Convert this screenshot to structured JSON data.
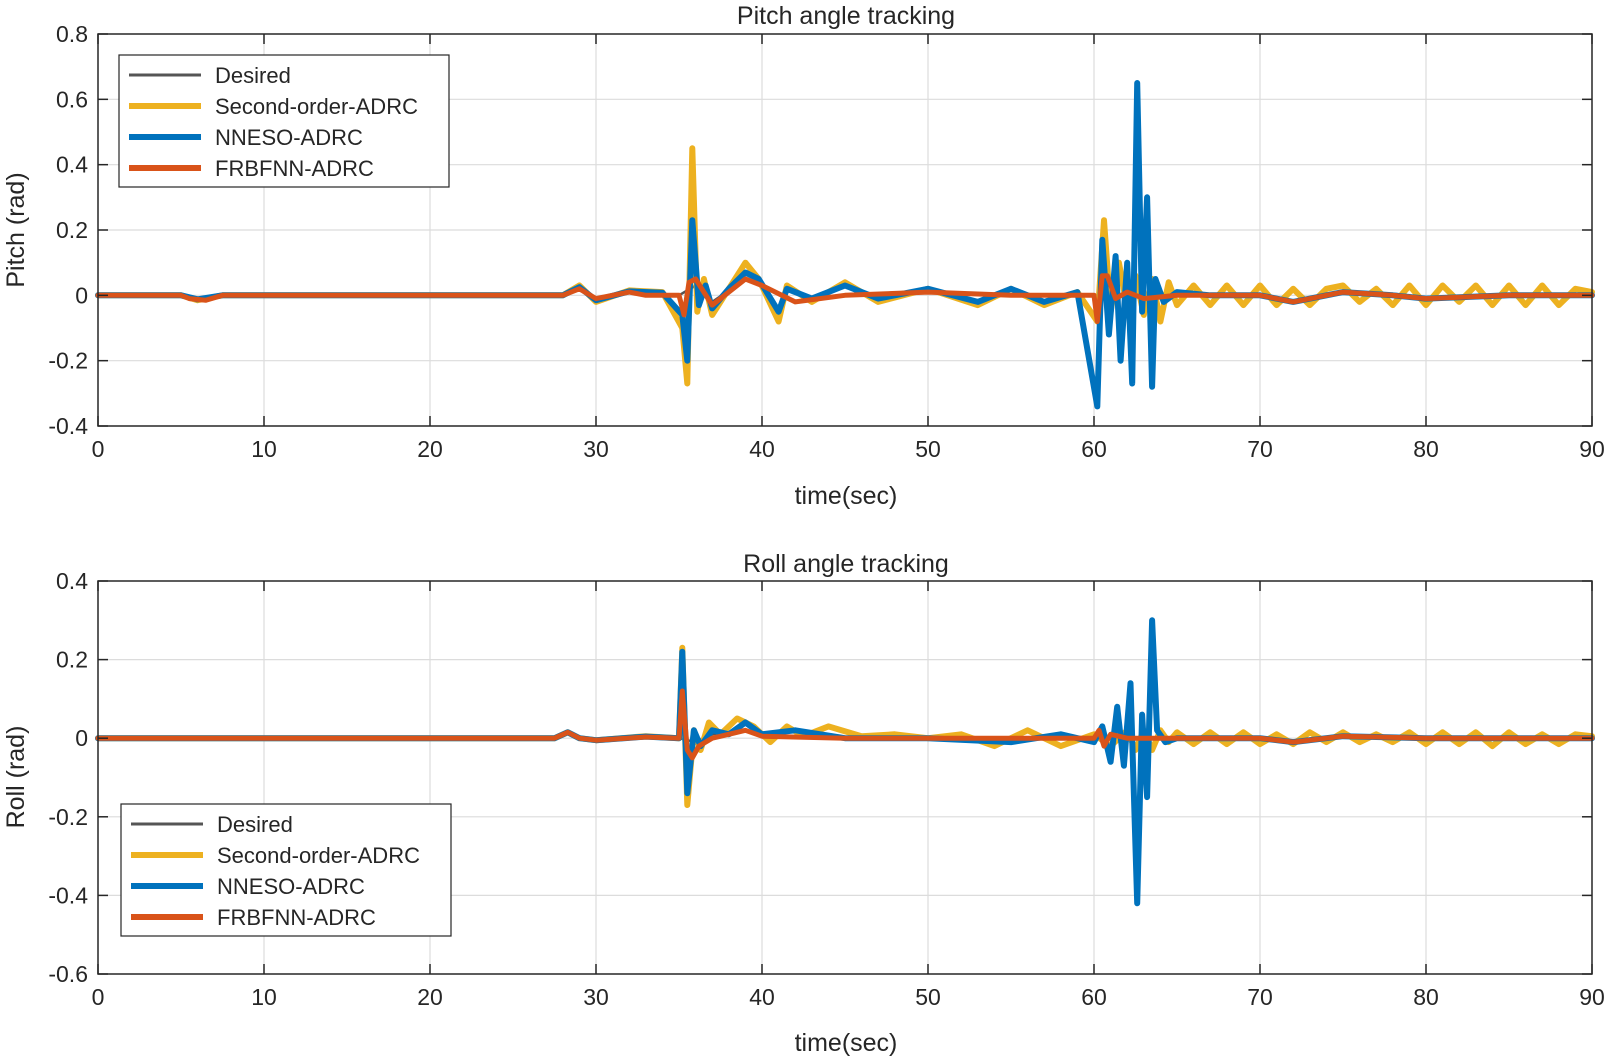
{
  "figure": {
    "background": "#ffffff"
  },
  "colors": {
    "desired": "#555555",
    "second_order": "#EDB120",
    "nneso": "#0072BD",
    "frbfnn": "#D95319",
    "grid": "#dcdcdc",
    "axis": "#262626"
  },
  "chart_data": [
    {
      "type": "line",
      "title": "Pitch angle tracking",
      "xlabel": "time(sec)",
      "ylabel": "Pitch (rad)",
      "xlim": [
        0,
        90
      ],
      "ylim": [
        -0.4,
        0.8
      ],
      "xticks": [
        0,
        10,
        20,
        30,
        40,
        50,
        60,
        70,
        80,
        90
      ],
      "xtick_labels": [
        "0",
        "10",
        "20",
        "30",
        "40",
        "50",
        "60",
        "70",
        "80",
        "90"
      ],
      "yticks": [
        -0.4,
        -0.2,
        0,
        0.2,
        0.4,
        0.6,
        0.8
      ],
      "ytick_labels": [
        "-0.4",
        "-0.2",
        "0",
        "0.2",
        "0.4",
        "0.6",
        "0.8"
      ],
      "grid": true,
      "legend_position": "top-left",
      "series": [
        {
          "name": "Desired",
          "color_key": "desired",
          "x": [
            0,
            5,
            5.5,
            6.5,
            7.5,
            28,
            29,
            30,
            32,
            33,
            35,
            36,
            37,
            39,
            40,
            42,
            45,
            50,
            55,
            58,
            60,
            62,
            65,
            70,
            72,
            75,
            78,
            80,
            85,
            90
          ],
          "y": [
            0,
            0,
            -0.01,
            -0.01,
            0,
            0,
            0.02,
            -0.01,
            0.01,
            0,
            0,
            0.03,
            -0.02,
            0.05,
            0.03,
            -0.02,
            0,
            0.01,
            0,
            0,
            0,
            0,
            0,
            0,
            -0.02,
            0.01,
            0,
            -0.01,
            0,
            0
          ]
        },
        {
          "name": "Second-order-ADRC",
          "color_key": "second_order",
          "x": [
            0,
            5,
            6,
            7.5,
            28,
            29,
            30,
            32,
            34,
            35.2,
            35.5,
            35.8,
            36.1,
            36.5,
            37,
            38,
            39,
            39.8,
            41,
            41.5,
            43,
            45,
            47,
            50,
            53,
            55,
            57,
            59,
            60.2,
            60.6,
            61,
            61.5,
            62,
            62.5,
            63,
            63.5,
            64,
            64.5,
            65,
            66,
            67,
            68,
            69,
            70,
            71,
            72,
            73,
            74,
            75,
            76,
            77,
            78,
            79,
            80,
            81,
            82,
            83,
            84,
            85,
            86,
            87,
            88,
            89,
            90
          ],
          "y": [
            0,
            0,
            -0.015,
            0,
            0,
            0.03,
            -0.02,
            0.015,
            0.01,
            -0.1,
            -0.27,
            0.45,
            -0.05,
            0.05,
            -0.06,
            0.02,
            0.1,
            0.05,
            -0.08,
            0.03,
            -0.02,
            0.04,
            -0.02,
            0.02,
            -0.03,
            0.02,
            -0.03,
            0.01,
            -0.08,
            0.23,
            -0.05,
            0.1,
            -0.04,
            0.06,
            -0.06,
            0.05,
            -0.08,
            0.04,
            -0.03,
            0.03,
            -0.03,
            0.03,
            -0.03,
            0.03,
            -0.03,
            0.02,
            -0.03,
            0.02,
            0.03,
            -0.02,
            0.02,
            -0.03,
            0.03,
            -0.03,
            0.03,
            -0.02,
            0.03,
            -0.03,
            0.03,
            -0.03,
            0.03,
            -0.03,
            0.02,
            0.01
          ]
        },
        {
          "name": "NNESO-ADRC",
          "color_key": "nneso",
          "x": [
            0,
            5,
            6,
            7.5,
            28,
            29,
            30,
            32,
            34,
            35.2,
            35.5,
            35.8,
            36.2,
            36.6,
            37,
            38,
            39,
            39.8,
            41,
            41.5,
            43,
            45,
            47,
            50,
            53,
            55,
            57,
            59,
            60.2,
            60.5,
            60.9,
            61.3,
            61.6,
            62,
            62.3,
            62.6,
            62.9,
            63.2,
            63.5,
            63.7,
            64.2,
            65,
            67,
            70,
            72,
            75,
            78,
            80,
            85,
            90
          ],
          "y": [
            0,
            0,
            -0.012,
            0,
            0,
            0.025,
            -0.015,
            0.012,
            0.008,
            -0.06,
            -0.2,
            0.23,
            -0.03,
            0.03,
            -0.04,
            0.02,
            0.07,
            0.05,
            -0.05,
            0.02,
            -0.01,
            0.03,
            -0.01,
            0.02,
            -0.02,
            0.02,
            -0.02,
            0.01,
            -0.34,
            0.17,
            -0.12,
            0.12,
            -0.2,
            0.1,
            -0.27,
            0.65,
            -0.05,
            0.3,
            -0.28,
            0.05,
            -0.02,
            0.01,
            0,
            0,
            -0.02,
            0.01,
            0,
            -0.01,
            0,
            0
          ]
        },
        {
          "name": "FRBFNN-ADRC",
          "color_key": "frbfnn",
          "x": [
            0,
            5,
            5.5,
            6.5,
            7.5,
            28,
            29,
            30,
            32,
            33,
            35,
            35.3,
            35.6,
            36,
            36.5,
            37,
            39,
            40,
            42,
            45,
            50,
            55,
            58,
            60,
            60.2,
            60.5,
            60.8,
            61.3,
            62,
            63,
            65,
            70,
            72,
            75,
            78,
            80,
            85,
            90
          ],
          "y": [
            0,
            0,
            -0.01,
            -0.015,
            0,
            0,
            0.02,
            -0.01,
            0.01,
            0,
            0,
            -0.06,
            0.04,
            0.05,
            0.01,
            -0.03,
            0.05,
            0.03,
            -0.02,
            0,
            0.01,
            0,
            0,
            0,
            -0.08,
            0.06,
            0.06,
            -0.01,
            0.01,
            -0.01,
            0,
            0,
            -0.02,
            0.01,
            0,
            -0.01,
            0,
            0
          ]
        }
      ]
    },
    {
      "type": "line",
      "title": "Roll angle tracking",
      "xlabel": "time(sec)",
      "ylabel": "Roll (rad)",
      "xlim": [
        0,
        90
      ],
      "ylim": [
        -0.6,
        0.4
      ],
      "xticks": [
        0,
        10,
        20,
        30,
        40,
        50,
        60,
        70,
        80,
        90
      ],
      "xtick_labels": [
        "0",
        "10",
        "20",
        "30",
        "40",
        "50",
        "60",
        "70",
        "80",
        "90"
      ],
      "yticks": [
        -0.6,
        -0.4,
        -0.2,
        0,
        0.2,
        0.4
      ],
      "ytick_labels": [
        "-0.6",
        "-0.4",
        "-0.2",
        "0",
        "0.2",
        "0.4"
      ],
      "grid": true,
      "legend_position": "bottom-left",
      "series": [
        {
          "name": "Desired",
          "color_key": "desired",
          "x": [
            0,
            27.5,
            28.3,
            29,
            30,
            33,
            35,
            36,
            37,
            38,
            39,
            40,
            45,
            50,
            55,
            60,
            65,
            70,
            72,
            75,
            80,
            85,
            90
          ],
          "y": [
            0,
            0,
            0.015,
            0,
            -0.005,
            0.002,
            0,
            -0.01,
            0.01,
            0.015,
            0.02,
            0.005,
            0,
            0,
            0,
            0,
            0,
            0,
            -0.01,
            0.005,
            0,
            0,
            0
          ]
        },
        {
          "name": "Second-order-ADRC",
          "color_key": "second_order",
          "x": [
            0,
            27.5,
            28.3,
            29,
            30,
            33,
            35,
            35.2,
            35.5,
            35.9,
            36.3,
            36.8,
            37.5,
            38.5,
            39.5,
            40.5,
            41.5,
            42.5,
            44,
            46,
            48,
            50,
            52,
            54,
            56,
            58,
            60,
            61,
            62,
            62.5,
            63,
            63.5,
            64,
            64.5,
            65,
            66,
            67,
            68,
            69,
            70,
            71,
            72,
            73,
            74,
            75,
            76,
            77,
            78,
            79,
            80,
            81,
            82,
            83,
            84,
            85,
            86,
            87,
            88,
            89,
            90
          ],
          "y": [
            0,
            0,
            0.015,
            0,
            -0.005,
            0.005,
            0,
            0.23,
            -0.17,
            0.02,
            -0.03,
            0.04,
            0.01,
            0.05,
            0.03,
            -0.01,
            0.03,
            0.005,
            0.03,
            0.005,
            0.01,
            0,
            0.01,
            -0.02,
            0.02,
            -0.02,
            0.01,
            -0.02,
            0.02,
            -0.03,
            0.02,
            -0.03,
            0.02,
            -0.01,
            0.015,
            -0.015,
            0.015,
            -0.015,
            0.015,
            -0.015,
            0.01,
            -0.015,
            0.015,
            -0.01,
            0.015,
            -0.01,
            0.01,
            -0.01,
            0.015,
            -0.015,
            0.015,
            -0.015,
            0.015,
            -0.02,
            0.015,
            -0.015,
            0.01,
            -0.015,
            0.01,
            0.005
          ]
        },
        {
          "name": "NNESO-ADRC",
          "color_key": "nneso",
          "x": [
            0,
            27.5,
            28.3,
            29,
            30,
            33,
            35,
            35.2,
            35.5,
            35.9,
            36.3,
            37,
            38,
            39,
            40,
            42,
            45,
            50,
            55,
            58,
            60,
            60.5,
            61,
            61.4,
            61.8,
            62.2,
            62.6,
            62.9,
            63.2,
            63.5,
            63.8,
            64.3,
            65,
            70,
            72,
            75,
            80,
            85,
            90
          ],
          "y": [
            0,
            0,
            0.015,
            0,
            -0.005,
            0.004,
            0,
            0.22,
            -0.14,
            0.02,
            -0.02,
            0.02,
            0.01,
            0.04,
            0.01,
            0.02,
            0,
            0,
            -0.01,
            0.01,
            -0.01,
            0.03,
            -0.06,
            0.08,
            -0.07,
            0.14,
            -0.42,
            0.06,
            -0.15,
            0.3,
            0.02,
            -0.01,
            0,
            0,
            -0.01,
            0.005,
            0,
            0,
            0
          ]
        },
        {
          "name": "FRBFNN-ADRC",
          "color_key": "frbfnn",
          "x": [
            0,
            27.5,
            28.3,
            29,
            30,
            33,
            35,
            35.2,
            35.5,
            35.8,
            36.2,
            37,
            38,
            39,
            40,
            45,
            50,
            55,
            60,
            60.3,
            60.6,
            61,
            62,
            65,
            70,
            72,
            75,
            80,
            85,
            90
          ],
          "y": [
            0,
            0,
            0.015,
            0,
            -0.005,
            0.003,
            0,
            0.12,
            -0.03,
            -0.05,
            -0.02,
            0,
            0.01,
            0.02,
            0.005,
            0,
            0,
            0,
            0,
            0.02,
            -0.02,
            0.01,
            0,
            0,
            0,
            -0.01,
            0.005,
            0,
            0,
            0
          ]
        }
      ]
    }
  ]
}
